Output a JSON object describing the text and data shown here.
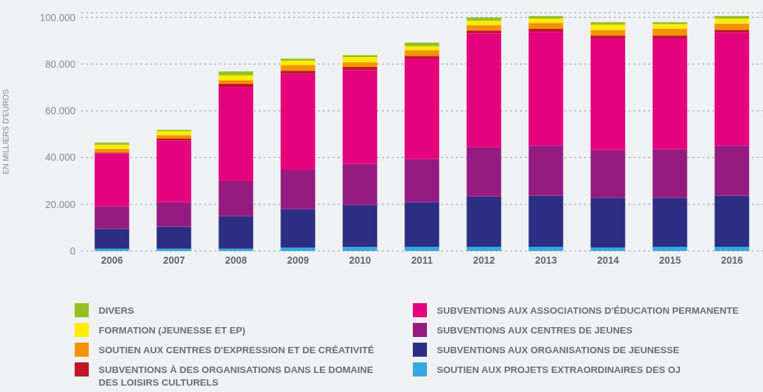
{
  "chart_data": {
    "type": "bar",
    "stacked": true,
    "ylabel": "EN MILLIERS D'EUROS",
    "categories": [
      "2006",
      "2007",
      "2008",
      "2009",
      "2010",
      "2011",
      "2012",
      "2013",
      "2014",
      "2015",
      "2016"
    ],
    "ylim": [
      0,
      102000
    ],
    "yticks": [
      {
        "value": 0,
        "label": "0"
      },
      {
        "value": 20000,
        "label": "20.000"
      },
      {
        "value": 40000,
        "label": "40.000"
      },
      {
        "value": 60000,
        "label": "60.000"
      },
      {
        "value": 80000,
        "label": "80.000"
      },
      {
        "value": 100000,
        "label": "100.000"
      }
    ],
    "grid": "y",
    "legend": "bottom",
    "series": [
      {
        "name": "SOUTIEN AUX PROJETS EXTRAORDINAIRES DES OJ",
        "color": "#35a9e1",
        "values": [
          1000,
          1000,
          1000,
          1400,
          1700,
          1800,
          1800,
          1800,
          1500,
          1800,
          1800
        ]
      },
      {
        "name": "SUBVENTIONS AUX ORGANISATIONS DE JEUNESSE",
        "color": "#2b2e83",
        "values": [
          8500,
          9400,
          13900,
          16500,
          18000,
          19200,
          21500,
          21900,
          21200,
          20900,
          21900
        ]
      },
      {
        "name": "SUBVENTIONS AUX CENTRES DE JEUNES",
        "color": "#951b81",
        "values": [
          9700,
          10500,
          15000,
          16800,
          17500,
          18300,
          21100,
          21500,
          20500,
          20800,
          21500
        ]
      },
      {
        "name": "SUBVENTIONS AUX ASSOCIATIONS D'ÉDUCATION PERMANENTE",
        "color": "#e5007e",
        "values": [
          22600,
          26300,
          40400,
          41100,
          40300,
          43100,
          48800,
          48600,
          47900,
          47600,
          48300
        ]
      },
      {
        "name": "SUBVENTIONS À DES ORGANISATIONS DANS LE DOMAINE DES LOISIRS CULTURELS",
        "color": "#c0152a",
        "values": [
          400,
          1000,
          1200,
          1400,
          1300,
          1100,
          1200,
          1400,
          1200,
          1200,
          1200
        ]
      },
      {
        "name": "SOUTIEN AUX CENTRES D'EXPRESSION ET DE CRÉATIVITÉ",
        "color": "#f39200",
        "values": [
          1500,
          1400,
          1500,
          2400,
          2000,
          2400,
          2300,
          2400,
          2300,
          2900,
          2600
        ]
      },
      {
        "name": "FORMATION (JEUNESSE ET EP)",
        "color": "#ffec00",
        "values": [
          1700,
          1700,
          2200,
          1900,
          2200,
          1800,
          1800,
          1800,
          2300,
          1900,
          2100
        ]
      },
      {
        "name": "DIVERS",
        "color": "#95c11f",
        "values": [
          1000,
          500,
          1700,
          800,
          800,
          1500,
          1500,
          1200,
          1000,
          800,
          1200
        ]
      }
    ]
  }
}
